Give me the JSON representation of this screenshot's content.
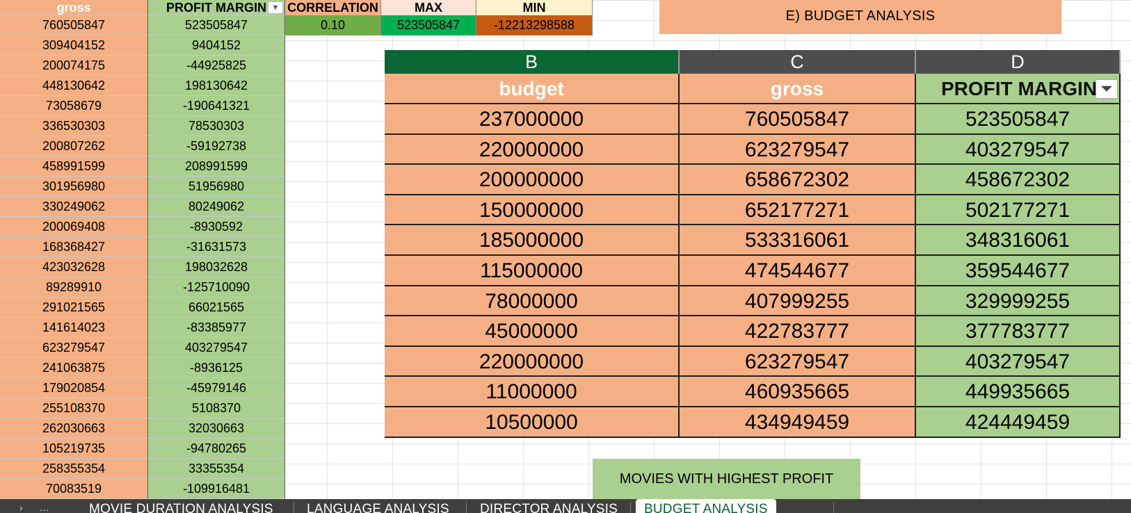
{
  "left_table": {
    "headers": {
      "gross": "gross",
      "profit_margin": "PROFIT MARGIN"
    },
    "rows": [
      [
        "760505847",
        "523505847"
      ],
      [
        "309404152",
        "9404152"
      ],
      [
        "200074175",
        "-44925825"
      ],
      [
        "448130642",
        "198130642"
      ],
      [
        "73058679",
        "-190641321"
      ],
      [
        "336530303",
        "78530303"
      ],
      [
        "200807262",
        "-59192738"
      ],
      [
        "458991599",
        "208991599"
      ],
      [
        "301956980",
        "51956980"
      ],
      [
        "330249062",
        "80249062"
      ],
      [
        "200069408",
        "-8930592"
      ],
      [
        "168368427",
        "-31631573"
      ],
      [
        "423032628",
        "198032628"
      ],
      [
        "89289910",
        "-125710090"
      ],
      [
        "291021565",
        "66021565"
      ],
      [
        "141614023",
        "-83385977"
      ],
      [
        "623279547",
        "403279547"
      ],
      [
        "241063875",
        "-8936125"
      ],
      [
        "179020854",
        "-45979146"
      ],
      [
        "255108370",
        "5108370"
      ],
      [
        "262030663",
        "32030663"
      ],
      [
        "105219735",
        "-94780265"
      ],
      [
        "258355354",
        "33355354"
      ],
      [
        "70083519",
        "-109916481"
      ]
    ]
  },
  "stats": {
    "correlation_label": "CORRELATION",
    "max_label": "MAX",
    "min_label": "MIN",
    "correlation_value": "0.10",
    "max_value": "523505847",
    "min_value": "-12213298588"
  },
  "banner": {
    "title": "E)   BUDGET ANALYSIS"
  },
  "zoom_table": {
    "column_letters": [
      "B",
      "C",
      "D"
    ],
    "headers": [
      "budget",
      "gross",
      "PROFIT MARGIN"
    ],
    "rows": [
      [
        "237000000",
        "760505847",
        "523505847"
      ],
      [
        "220000000",
        "623279547",
        "403279547"
      ],
      [
        "200000000",
        "658672302",
        "458672302"
      ],
      [
        "150000000",
        "652177271",
        "502177271"
      ],
      [
        "185000000",
        "533316061",
        "348316061"
      ],
      [
        "115000000",
        "474544677",
        "359544677"
      ],
      [
        "78000000",
        "407999255",
        "329999255"
      ],
      [
        "45000000",
        "422783777",
        "377783777"
      ],
      [
        "220000000",
        "623279547",
        "403279547"
      ],
      [
        "11000000",
        "460935665",
        "449935665"
      ],
      [
        "10500000",
        "434949459",
        "424449459"
      ]
    ]
  },
  "caption": {
    "text": "MOVIES WITH HIGHEST PROFIT MARGIN"
  },
  "sheet_tabs": {
    "items": [
      "MOVIE DURATION ANALYSIS",
      "LANGUAGE ANALYSIS",
      "DIRECTOR ANALYSIS",
      "BUDGET ANALYSIS"
    ],
    "active": "BUDGET ANALYSIS"
  },
  "colors": {
    "orange_fill": "#f4b084",
    "green_fill": "#a9d08e",
    "correlation_fill": "#70ad47",
    "max_fill": "#00b050",
    "min_fill": "#c55a11",
    "selected_column_header": "#0b6633",
    "column_header": "#4d4d4d"
  }
}
